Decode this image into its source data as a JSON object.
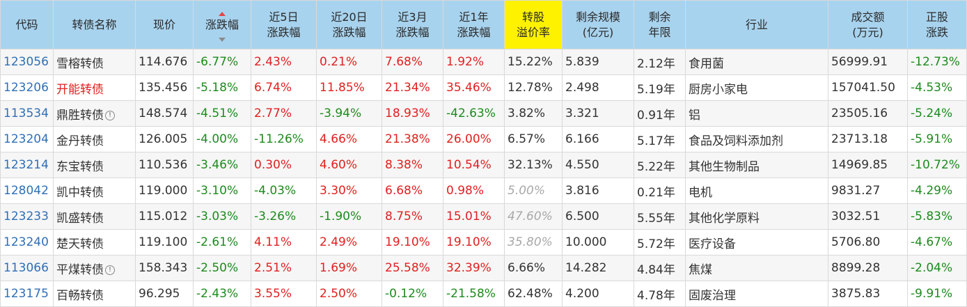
{
  "headers": [
    "代码",
    "转债名称",
    "现价",
    "涨跌幅",
    "近5日\n涨跌幅",
    "近20日\n涨跌幅",
    "近3月\n涨跌幅",
    "近1年\n涨跌幅",
    "转股\n溢价率",
    "剩余规模\n(亿元)",
    "剩余\n年限",
    "行业",
    "成交额\n(万元)",
    "正股\n涨跌"
  ],
  "rows": [
    {
      "code": "123056",
      "name": "雪榕转债",
      "price": "114.676",
      "chg": "-6.77%",
      "chg5": "2.43%",
      "chg20": "0.21%",
      "chg3m": "7.68%",
      "chg1y": "1.92%",
      "premium": "15.22%",
      "scale": "5.839",
      "years": "2.12年",
      "industry": "食用菌",
      "amount": "56999.91",
      "stock": "-12.73%"
    },
    {
      "code": "123206",
      "name": "开能转债",
      "price": "135.456",
      "chg": "-5.18%",
      "chg5": "6.74%",
      "chg20": "11.85%",
      "chg3m": "21.34%",
      "chg1y": "35.46%",
      "premium": "12.78%",
      "scale": "2.498",
      "years": "5.19年",
      "industry": "厨房小家电",
      "amount": "157041.50",
      "stock": "-4.53%"
    },
    {
      "code": "113534",
      "name": "鼎胜转债",
      "price": "148.574",
      "chg": "-4.51%",
      "chg5": "2.77%",
      "chg20": "-3.94%",
      "chg3m": "18.93%",
      "chg1y": "-42.63%",
      "premium": "3.82%",
      "scale": "3.321",
      "years": "0.91年",
      "industry": "铝",
      "amount": "23505.16",
      "stock": "-5.24%"
    },
    {
      "code": "123204",
      "name": "金丹转债",
      "price": "126.005",
      "chg": "-4.00%",
      "chg5": "-11.26%",
      "chg20": "4.66%",
      "chg3m": "21.38%",
      "chg1y": "26.00%",
      "premium": "6.57%",
      "scale": "6.166",
      "years": "5.17年",
      "industry": "食品及饲料添加剂",
      "amount": "23713.18",
      "stock": "-5.91%"
    },
    {
      "code": "123214",
      "name": "东宝转债",
      "price": "110.536",
      "chg": "-3.46%",
      "chg5": "0.30%",
      "chg20": "4.60%",
      "chg3m": "8.38%",
      "chg1y": "10.54%",
      "premium": "32.13%",
      "scale": "4.550",
      "years": "5.22年",
      "industry": "其他生物制品",
      "amount": "14969.85",
      "stock": "-10.72%"
    },
    {
      "code": "128042",
      "name": "凯中转债",
      "price": "119.000",
      "chg": "-3.10%",
      "chg5": "-4.03%",
      "chg20": "3.30%",
      "chg3m": "6.68%",
      "chg1y": "0.98%",
      "premium": "5.00%",
      "scale": "3.816",
      "years": "0.21年",
      "industry": "电机",
      "amount": "9831.27",
      "stock": "-4.29%"
    },
    {
      "code": "123233",
      "name": "凯盛转债",
      "price": "115.012",
      "chg": "-3.03%",
      "chg5": "-3.26%",
      "chg20": "-1.90%",
      "chg3m": "8.75%",
      "chg1y": "15.01%",
      "premium": "47.60%",
      "scale": "6.500",
      "years": "5.55年",
      "industry": "其他化学原料",
      "amount": "3032.51",
      "stock": "-5.83%"
    },
    {
      "code": "123240",
      "name": "楚天转债",
      "price": "119.100",
      "chg": "-2.61%",
      "chg5": "4.11%",
      "chg20": "2.49%",
      "chg3m": "19.10%",
      "chg1y": "19.10%",
      "premium": "35.80%",
      "scale": "10.000",
      "years": "5.72年",
      "industry": "医疗设备",
      "amount": "5706.80",
      "stock": "-4.67%"
    },
    {
      "code": "113066",
      "name": "平煤转债",
      "price": "158.343",
      "chg": "-2.50%",
      "chg5": "2.51%",
      "chg20": "1.69%",
      "chg3m": "25.58%",
      "chg1y": "32.39%",
      "premium": "6.66%",
      "scale": "14.282",
      "years": "4.84年",
      "industry": "焦煤",
      "amount": "8899.28",
      "stock": "-2.04%"
    },
    {
      "code": "123175",
      "name": "百畅转债",
      "price": "96.295",
      "chg": "-2.43%",
      "chg5": "3.55%",
      "chg20": "2.50%",
      "chg3m": "-0.12%",
      "chg1y": "-21.58%",
      "premium": "62.48%",
      "scale": "4.200",
      "years": "4.78年",
      "industry": "固废治理",
      "amount": "3875.83",
      "stock": "-9.91%"
    }
  ],
  "info_rows": [
    2,
    8
  ],
  "red_name_rows": [
    1
  ],
  "grey_premium_rows": [
    5,
    6,
    7
  ],
  "info_icon_glyph": "!",
  "colors": {
    "positive": "#e02020",
    "negative": "#1d8a1d",
    "code": "#2f6fb6",
    "header_bg": "#a8d3ee",
    "highlight_header": "#fff200"
  }
}
